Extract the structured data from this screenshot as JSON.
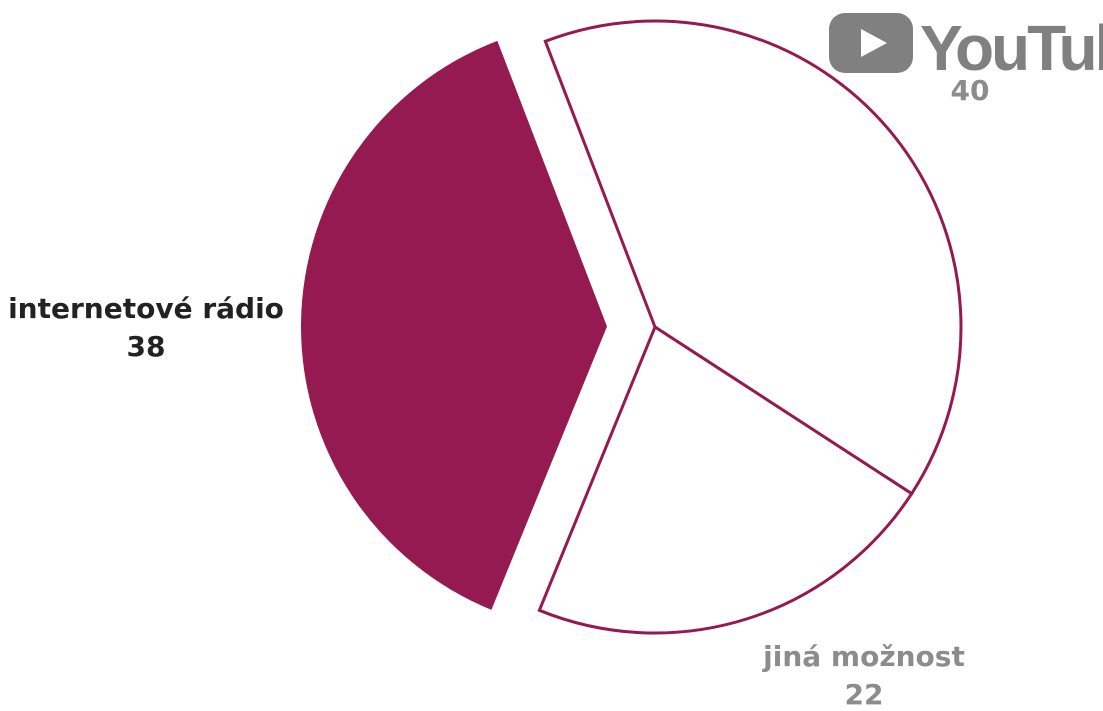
{
  "chart_data": {
    "type": "pie",
    "categories": [
      "YouTube",
      "jiná možnost",
      "internetové rádio"
    ],
    "values": [
      40,
      22,
      38
    ],
    "highlighted": "internetové rádio",
    "colors": {
      "highlight_fill": "#961a52",
      "outline": "#961a52",
      "plain_fill": "#ffffff",
      "highlight_label": "#222222",
      "plain_label": "#8c8c8c"
    },
    "legend": "none",
    "grid": false
  },
  "logo": {
    "text": "YouTube",
    "color": "#808080",
    "icon": "play-icon"
  }
}
